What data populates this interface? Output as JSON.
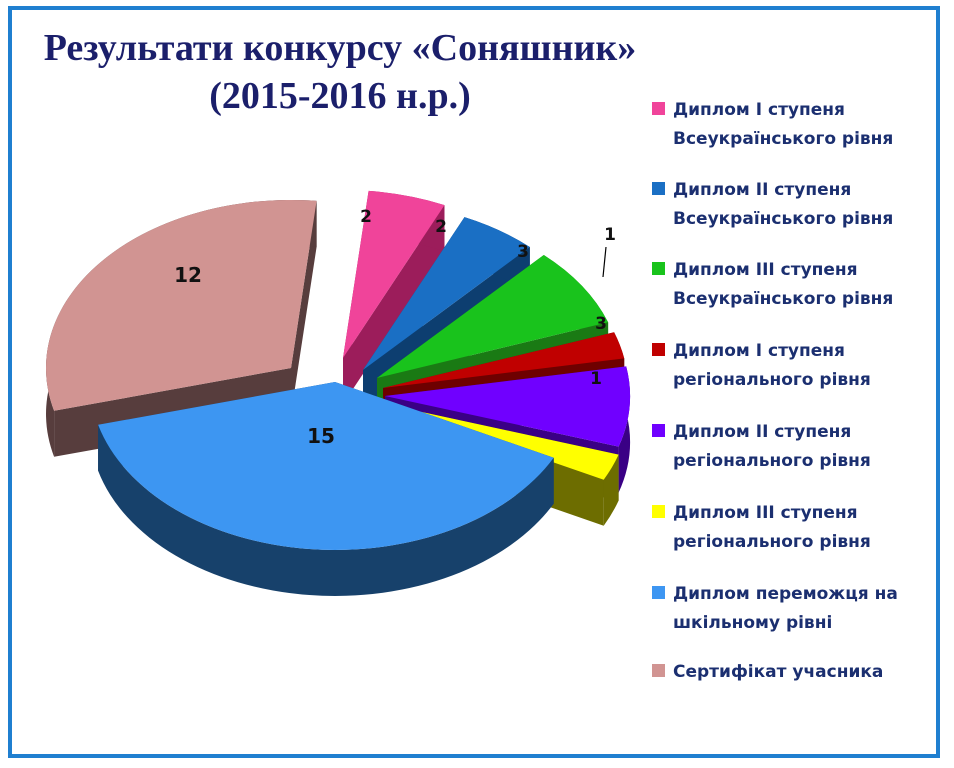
{
  "title_line1": "Результати конкурсу «Соняшник»",
  "title_line2": "(2015-2016 н.р.)",
  "chart_data": {
    "type": "pie",
    "title": "Результати конкурсу «Соняшник» (2015-2016 н.р.)",
    "legend_position": "right",
    "exploded": true,
    "three_d": true,
    "categories": [
      "Диплом І ступеня Всеукраїнського рівня",
      "Диплом ІІ ступеня Всеукраїнського рівня",
      "Диплом ІІІ ступеня Всеукраїнського рівня",
      "Диплом І ступеня регіонального рівня",
      "Диплом ІІ ступеня регіонального рівня",
      "Диплом ІІІ ступеня регіонального рівня",
      "Диплом переможця на шкільному рівні",
      "Сертифікат учасника"
    ],
    "values": [
      2,
      2,
      3,
      1,
      3,
      1,
      15,
      12
    ],
    "colors": [
      "#f0449a",
      "#1a6fc4",
      "#19c31c",
      "#c00000",
      "#7000ff",
      "#ffff00",
      "#3d96f2",
      "#d19492"
    ],
    "side_colors": [
      "#9c1d5b",
      "#0d3e70",
      "#1a7a14",
      "#6e0000",
      "#3a0085",
      "#6d6d00",
      "#17416b",
      "#573d3d"
    ]
  },
  "legend": [
    {
      "line1": "Диплом І ступеня",
      "line2": "Всеукраїнського рівня"
    },
    {
      "line1": "Диплом ІІ ступеня",
      "line2": "Всеукраїнського рівня"
    },
    {
      "line1": "Диплом ІІІ ступеня",
      "line2": "Всеукраїнського рівня"
    },
    {
      "line1": "Диплом І ступеня",
      "line2": "регіонального рівня"
    },
    {
      "line1": "Диплом ІІ ступеня",
      "line2": "регіонального рівня"
    },
    {
      "line1": "Диплом ІІІ ступеня",
      "line2": "регіонального рівня"
    },
    {
      "line1": "Диплом переможця на",
      "line2": "шкільному рівні"
    },
    {
      "line1": "Сертифікат учасника",
      "line2": ""
    }
  ]
}
